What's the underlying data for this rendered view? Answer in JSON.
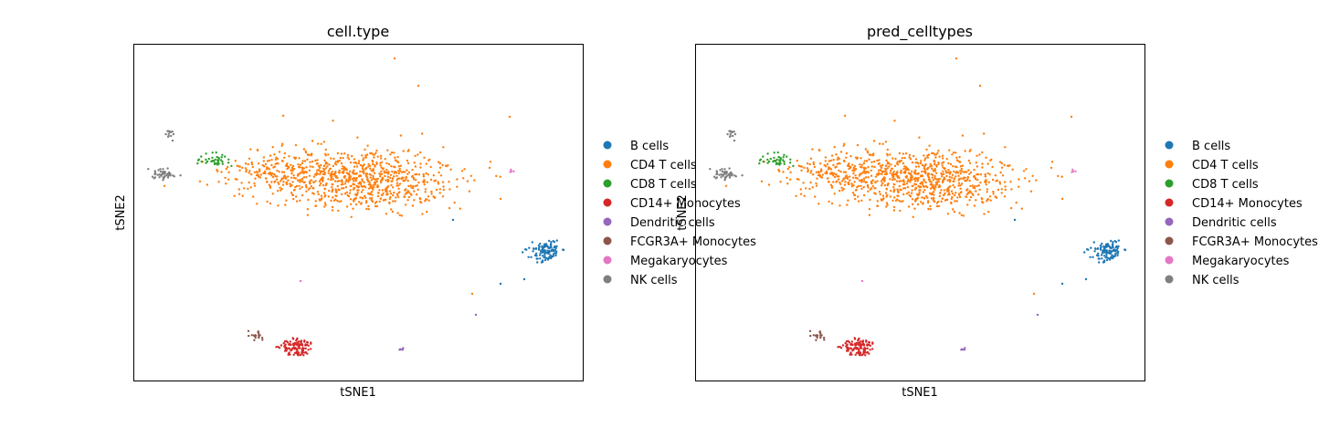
{
  "chart_data": [
    {
      "type": "scatter",
      "title": "cell.type",
      "xlabel": "tSNE1",
      "ylabel": "tSNE2",
      "legend_position": "right",
      "grid": false,
      "series": [
        {
          "name": "B cells",
          "color": "#1f77b4"
        },
        {
          "name": "CD4 T cells",
          "color": "#ff7f0e"
        },
        {
          "name": "CD8 T cells",
          "color": "#2ca02c"
        },
        {
          "name": "CD14+ Monocytes",
          "color": "#d62728"
        },
        {
          "name": "Dendritic cells",
          "color": "#9467bd"
        },
        {
          "name": "FCGR3A+ Monocytes",
          "color": "#8c564b"
        },
        {
          "name": "Megakaryocytes",
          "color": "#e377c2"
        },
        {
          "name": "NK cells",
          "color": "#7f7f7f"
        }
      ]
    },
    {
      "type": "scatter",
      "title": "pred_celltypes",
      "xlabel": "tSNE1",
      "ylabel": "tSNE2",
      "legend_position": "right",
      "grid": false,
      "series": [
        {
          "name": "B cells",
          "color": "#1f77b4"
        },
        {
          "name": "CD4 T cells",
          "color": "#ff7f0e"
        },
        {
          "name": "CD8 T cells",
          "color": "#2ca02c"
        },
        {
          "name": "CD14+ Monocytes",
          "color": "#d62728"
        },
        {
          "name": "Dendritic cells",
          "color": "#9467bd"
        },
        {
          "name": "FCGR3A+ Monocytes",
          "color": "#8c564b"
        },
        {
          "name": "Megakaryocytes",
          "color": "#e377c2"
        },
        {
          "name": "NK cells",
          "color": "#7f7f7f"
        }
      ]
    }
  ]
}
